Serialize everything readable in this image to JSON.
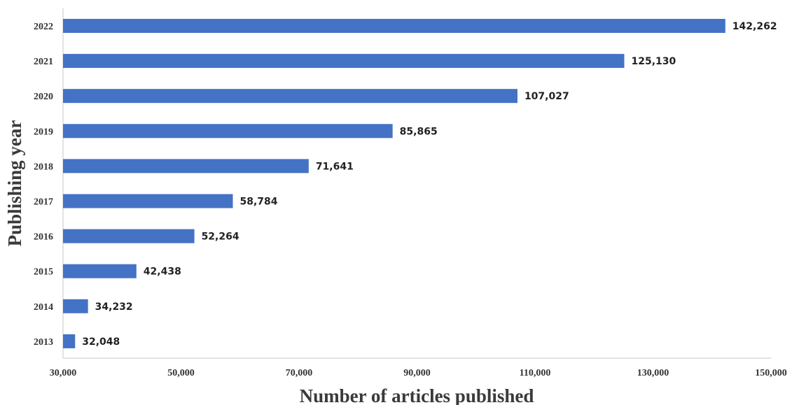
{
  "chart_data": {
    "type": "bar",
    "orientation": "horizontal",
    "title": "",
    "xlabel": "Number of articles published",
    "ylabel": "Publishing year",
    "xlim": [
      30000,
      150000
    ],
    "x_ticks": [
      "30,000",
      "50,000",
      "70,000",
      "90,000",
      "110,000",
      "130,000",
      "150,000"
    ],
    "x_tick_values": [
      30000,
      50000,
      70000,
      90000,
      110000,
      130000,
      150000
    ],
    "categories": [
      "2022",
      "2021",
      "2020",
      "2019",
      "2018",
      "2017",
      "2016",
      "2015",
      "2014",
      "2013"
    ],
    "values": [
      142262,
      125130,
      107027,
      85865,
      71641,
      58784,
      52264,
      42438,
      34232,
      32048
    ],
    "value_labels": [
      "142,262",
      "125,130",
      "107,027",
      "85,865",
      "71,641",
      "58,784",
      "52,264",
      "42,438",
      "34,232",
      "32,048"
    ],
    "grid": false,
    "legend": "none",
    "bar_color": "#4472C4"
  }
}
